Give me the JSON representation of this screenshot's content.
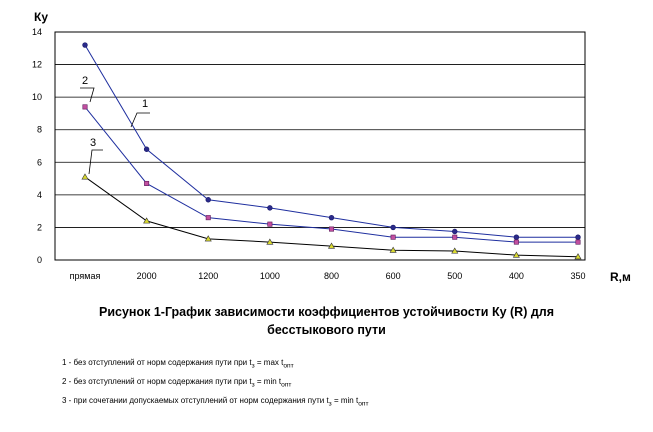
{
  "chart_data": {
    "type": "line",
    "ylabel": "Ку",
    "xlabel": "R,м",
    "ylim": [
      0,
      14
    ],
    "y_ticks": [
      "0",
      "2",
      "4",
      "6",
      "8",
      "10",
      "12",
      "14"
    ],
    "grid": "horizontal",
    "categories": [
      "прямая",
      "2000",
      "1200",
      "1000",
      "800",
      "600",
      "500",
      "400",
      "350"
    ],
    "series": [
      {
        "name": "1",
        "color": "#1f2f9f",
        "marker": "circle",
        "marker_color": "#2a2a8a",
        "values": [
          13.2,
          6.8,
          3.7,
          3.2,
          2.6,
          2.0,
          1.75,
          1.4,
          1.4
        ]
      },
      {
        "name": "2",
        "color": "#1f2f9f",
        "marker": "square",
        "marker_color": "#c24fa0",
        "values": [
          9.4,
          4.7,
          2.6,
          2.2,
          1.9,
          1.4,
          1.4,
          1.1,
          1.1
        ]
      },
      {
        "name": "3",
        "color": "#000000",
        "marker": "triangle",
        "marker_color": "#d8d830",
        "values": [
          5.1,
          2.4,
          1.3,
          1.1,
          0.85,
          0.6,
          0.55,
          0.3,
          0.2
        ]
      }
    ]
  },
  "caption": {
    "line1": "Рисунок 1-График зависимости коэффициентов устойчивости Ку (R) для",
    "line2": "бесстыкового пути"
  },
  "notes": [
    {
      "text": "1 - без отступлений от норм содержания пути при t",
      "sub1": "з",
      "mid": " = max t",
      "sub2": "опт"
    },
    {
      "text": "2 - без отступлений от норм содержания пути при t",
      "sub1": "з",
      "mid": " = min t",
      "sub2": "опт"
    },
    {
      "text": "3 - при сочетании допускаемых отступлений от норм содержания пути t",
      "sub1": "з",
      "mid": " = min t",
      "sub2": "опт"
    }
  ]
}
